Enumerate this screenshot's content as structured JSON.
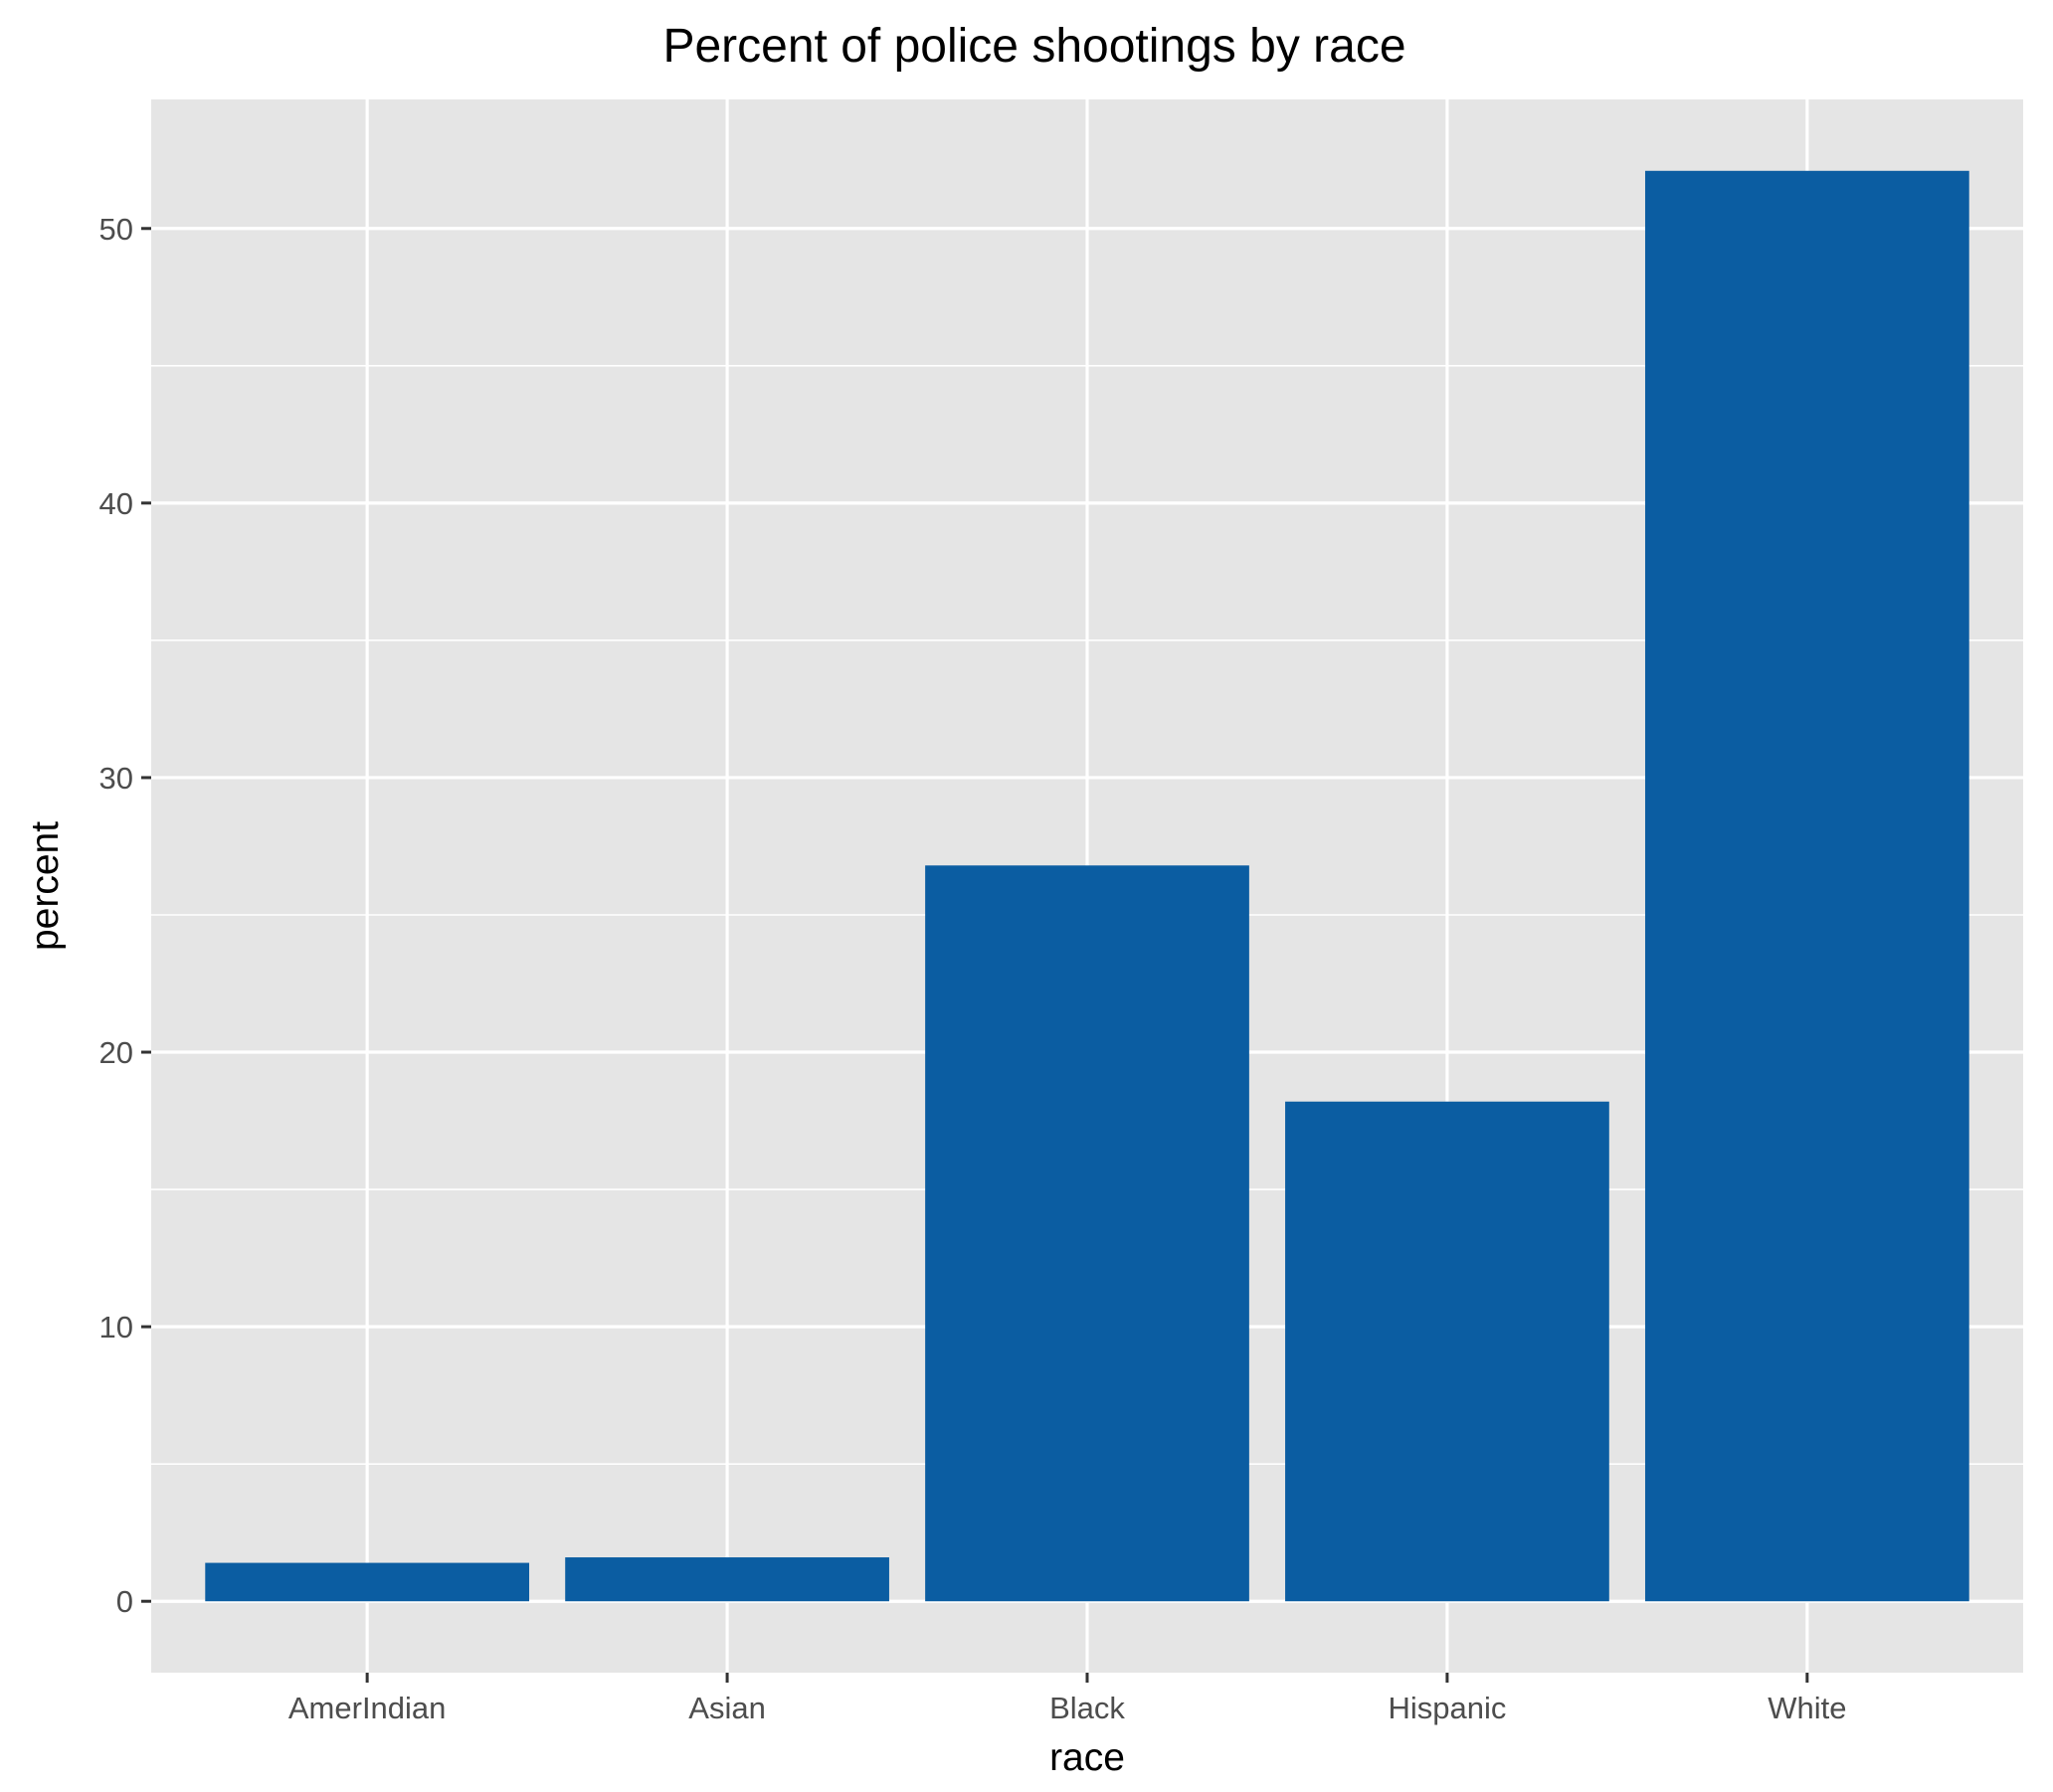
{
  "chart_data": {
    "type": "bar",
    "title": "Percent of police shootings by race",
    "xlabel": "race",
    "ylabel": "percent",
    "categories": [
      "AmerIndian",
      "Asian",
      "Black",
      "Hispanic",
      "White"
    ],
    "values": [
      1.4,
      1.6,
      26.8,
      18.2,
      52.1
    ],
    "ylim": [
      -2.6,
      54.7
    ],
    "yticks": [
      0,
      10,
      20,
      30,
      40,
      50
    ],
    "ytick_labels": [
      "0",
      "10",
      "20",
      "30",
      "40",
      "50"
    ],
    "grid": true,
    "legend": "none",
    "colors": {
      "bar": "#0b5da2",
      "panel": "#e5e5e5",
      "grid": "#ffffff",
      "tick": "#333333"
    }
  }
}
